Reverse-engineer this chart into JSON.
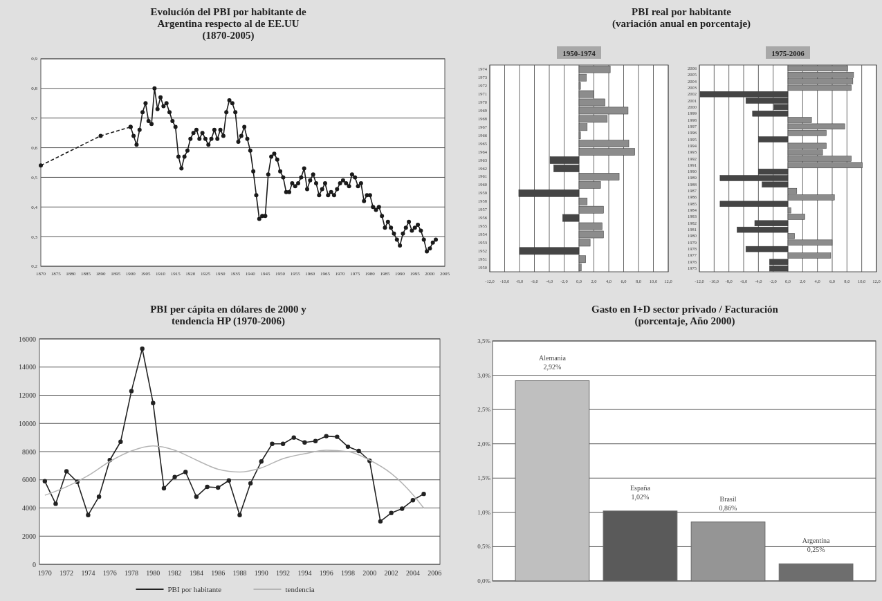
{
  "chart_data": [
    {
      "type": "line",
      "title": "Evolución del PBI por habitante de\nArgentina respecto al de EE.UU\n(1870-2005)",
      "marker": "circle",
      "grid": "y",
      "xlim": [
        1870,
        2005
      ],
      "xticks": [
        1870,
        1875,
        1880,
        1885,
        1890,
        1895,
        1900,
        1905,
        1910,
        1915,
        1920,
        1925,
        1930,
        1935,
        1940,
        1945,
        1950,
        1955,
        1960,
        1965,
        1970,
        1975,
        1980,
        1985,
        1990,
        1995,
        2000,
        2005
      ],
      "ylim": [
        0.2,
        0.9
      ],
      "yticks": [
        {
          "value": 0.2,
          "label": "0,2"
        },
        {
          "value": 0.3,
          "label": "0,3"
        },
        {
          "value": 0.4,
          "label": "0,4"
        },
        {
          "value": 0.5,
          "label": "0,5"
        },
        {
          "value": 0.6,
          "label": "0,6"
        },
        {
          "value": 0.7,
          "label": "0,7"
        },
        {
          "value": 0.8,
          "label": "0,8"
        },
        {
          "value": 0.9,
          "label": "0,9"
        }
      ],
      "series": [
        {
          "color": "#1a1a1a",
          "line_style": "dashed",
          "x": [
            1870,
            1890,
            1900
          ],
          "values": [
            0.54,
            0.64,
            0.67
          ]
        },
        {
          "color": "#1a1a1a",
          "line_style": "solid",
          "x": [
            1900,
            1901,
            1902,
            1903,
            1904,
            1905,
            1906,
            1907,
            1908,
            1909,
            1910,
            1911,
            1912,
            1913,
            1914,
            1915,
            1916,
            1917,
            1918,
            1919,
            1920,
            1921,
            1922,
            1923,
            1924,
            1925,
            1926,
            1927,
            1928,
            1929,
            1930,
            1931,
            1932,
            1933,
            1934,
            1935,
            1936,
            1937,
            1938,
            1939,
            1940,
            1941,
            1942,
            1943,
            1944,
            1945,
            1946,
            1947,
            1948,
            1949,
            1950,
            1951,
            1952,
            1953,
            1954,
            1955,
            1956,
            1957,
            1958,
            1959,
            1960,
            1961,
            1962,
            1963,
            1964,
            1965,
            1966,
            1967,
            1968,
            1969,
            1970,
            1971,
            1972,
            1973,
            1974,
            1975,
            1976,
            1977,
            1978,
            1979,
            1980,
            1981,
            1982,
            1983,
            1984,
            1985,
            1986,
            1987,
            1988,
            1989,
            1990,
            1991,
            1992,
            1993,
            1994,
            1995,
            1996,
            1997,
            1998,
            1999,
            2000,
            2001,
            2002
          ],
          "values": [
            0.67,
            0.64,
            0.61,
            0.66,
            0.72,
            0.75,
            0.69,
            0.68,
            0.8,
            0.73,
            0.77,
            0.74,
            0.75,
            0.72,
            0.69,
            0.67,
            0.57,
            0.53,
            0.57,
            0.59,
            0.63,
            0.65,
            0.66,
            0.63,
            0.65,
            0.63,
            0.61,
            0.63,
            0.66,
            0.63,
            0.66,
            0.64,
            0.72,
            0.76,
            0.75,
            0.72,
            0.62,
            0.64,
            0.67,
            0.63,
            0.59,
            0.52,
            0.44,
            0.36,
            0.37,
            0.37,
            0.51,
            0.57,
            0.58,
            0.56,
            0.52,
            0.5,
            0.45,
            0.45,
            0.48,
            0.47,
            0.48,
            0.5,
            0.53,
            0.46,
            0.49,
            0.51,
            0.48,
            0.44,
            0.46,
            0.48,
            0.44,
            0.45,
            0.44,
            0.46,
            0.48,
            0.49,
            0.48,
            0.47,
            0.51,
            0.5,
            0.47,
            0.48,
            0.42,
            0.44,
            0.44,
            0.4,
            0.39,
            0.4,
            0.37,
            0.33,
            0.35,
            0.33,
            0.31,
            0.29,
            0.27,
            0.31,
            0.33,
            0.35,
            0.32,
            0.33,
            0.34,
            0.32,
            0.29,
            0.25,
            0.26,
            0.28,
            0.29
          ]
        }
      ]
    },
    {
      "type": "bar",
      "orientation": "horizontal",
      "title": "PBI real por habitante\n(variación anual en porcentaje)",
      "subtitle": "1950-1974",
      "grid": "x",
      "categories": [
        "1974",
        "1973",
        "1972",
        "1971",
        "1970",
        "1969",
        "1968",
        "1967",
        "1966",
        "1965",
        "1964",
        "1963",
        "1962",
        "1961",
        "1960",
        "1959",
        "1958",
        "1957",
        "1956",
        "1955",
        "1954",
        "1953",
        "1952",
        "1951",
        "1950"
      ],
      "values": [
        4.2,
        1.0,
        0.2,
        2.0,
        3.5,
        6.6,
        3.8,
        1.1,
        0.2,
        6.7,
        7.5,
        -3.9,
        -3.4,
        5.4,
        2.9,
        -8.1,
        1.1,
        3.3,
        -2.2,
        3.1,
        3.3,
        1.5,
        -8.0,
        0.9,
        0.3
      ],
      "colors": [
        "#8c8c8c",
        "#8c8c8c",
        "#8c8c8c",
        "#8c8c8c",
        "#8c8c8c",
        "#8c8c8c",
        "#8c8c8c",
        "#8c8c8c",
        "#8c8c8c",
        "#8c8c8c",
        "#8c8c8c",
        "#454545",
        "#454545",
        "#8c8c8c",
        "#8c8c8c",
        "#454545",
        "#8c8c8c",
        "#8c8c8c",
        "#454545",
        "#8c8c8c",
        "#8c8c8c",
        "#8c8c8c",
        "#454545",
        "#8c8c8c",
        "#8c8c8c"
      ],
      "xlim": [
        -12,
        12
      ],
      "xticks": [
        {
          "value": -12,
          "label": "-12,0"
        },
        {
          "value": -10,
          "label": "-10,0"
        },
        {
          "value": -8,
          "label": "-8,0"
        },
        {
          "value": -6,
          "label": "-6,0"
        },
        {
          "value": -4,
          "label": "-4,0"
        },
        {
          "value": -2,
          "label": "-2,0"
        },
        {
          "value": 0,
          "label": "0,0"
        },
        {
          "value": 2,
          "label": "2,0"
        },
        {
          "value": 4,
          "label": "4,0"
        },
        {
          "value": 6,
          "label": "6,0"
        },
        {
          "value": 8,
          "label": "8,0"
        },
        {
          "value": 10,
          "label": "10,0"
        },
        {
          "value": 12,
          "label": "12,0"
        }
      ]
    },
    {
      "type": "bar",
      "orientation": "horizontal",
      "subtitle": "1975-2006",
      "grid": "x",
      "categories": [
        "2006",
        "2005",
        "2004",
        "2003",
        "2002",
        "2001",
        "2000",
        "1999",
        "1998",
        "1997",
        "1996",
        "1995",
        "1994",
        "1993",
        "1992",
        "1991",
        "1990",
        "1989",
        "1988",
        "1987",
        "1986",
        "1985",
        "1984",
        "1983",
        "1982",
        "1981",
        "1980",
        "1979",
        "1978",
        "1977",
        "1976",
        "1975"
      ],
      "values": [
        8.1,
        8.9,
        8.8,
        8.6,
        -11.9,
        -5.7,
        -1.9,
        -4.8,
        3.2,
        7.7,
        5.2,
        -4.0,
        5.2,
        4.7,
        8.6,
        10.1,
        -4.0,
        -9.2,
        -3.5,
        1.2,
        6.3,
        -9.2,
        0.4,
        2.3,
        -4.5,
        -6.9,
        0.9,
        6.0,
        -5.7,
        5.8,
        -2.5,
        -2.5
      ],
      "colors": [
        "#8c8c8c",
        "#8c8c8c",
        "#8c8c8c",
        "#8c8c8c",
        "#454545",
        "#454545",
        "#454545",
        "#454545",
        "#8c8c8c",
        "#8c8c8c",
        "#8c8c8c",
        "#454545",
        "#8c8c8c",
        "#8c8c8c",
        "#8c8c8c",
        "#8c8c8c",
        "#454545",
        "#454545",
        "#454545",
        "#8c8c8c",
        "#8c8c8c",
        "#454545",
        "#8c8c8c",
        "#8c8c8c",
        "#454545",
        "#454545",
        "#8c8c8c",
        "#8c8c8c",
        "#454545",
        "#8c8c8c",
        "#454545",
        "#454545"
      ],
      "xlim": [
        -12,
        12
      ],
      "xticks": [
        {
          "value": -12,
          "label": "-12,0"
        },
        {
          "value": -10,
          "label": "-10,0"
        },
        {
          "value": -8,
          "label": "-8,0"
        },
        {
          "value": -6,
          "label": "-6,0"
        },
        {
          "value": -4,
          "label": "-4,0"
        },
        {
          "value": -2,
          "label": "-2,0"
        },
        {
          "value": 0,
          "label": "0,0"
        },
        {
          "value": 2,
          "label": "2,0"
        },
        {
          "value": 4,
          "label": "4,0"
        },
        {
          "value": 6,
          "label": "6,0"
        },
        {
          "value": 8,
          "label": "8,0"
        },
        {
          "value": 10,
          "label": "10,0"
        },
        {
          "value": 12,
          "label": "12,0"
        }
      ]
    },
    {
      "type": "line",
      "title": "PBI per cápita en dólares de 2000 y\ntendencia HP (1970-2006)",
      "marker": "circle",
      "grid": "y",
      "legend": "bottom",
      "xlim": [
        1969.5,
        2006.5
      ],
      "xticks": [
        1970,
        1972,
        1974,
        1976,
        1978,
        1980,
        1982,
        1984,
        1986,
        1988,
        1990,
        1992,
        1994,
        1996,
        1998,
        2000,
        2002,
        2004,
        2006
      ],
      "ylim": [
        0,
        16000
      ],
      "yticks": [
        0,
        2000,
        4000,
        6000,
        8000,
        10000,
        12000,
        14000,
        16000
      ],
      "series": [
        {
          "name": "PBI por habitante",
          "color": "#222222",
          "x": [
            1970,
            1971,
            1972,
            1973,
            1974,
            1975,
            1976,
            1977,
            1978,
            1979,
            1980,
            1981,
            1982,
            1983,
            1984,
            1985,
            1986,
            1987,
            1988,
            1989,
            1990,
            1991,
            1992,
            1993,
            1994,
            1995,
            1996,
            1997,
            1998,
            1999,
            2000,
            2001,
            2002,
            2003,
            2004,
            2005
          ],
          "values": [
            5900,
            4300,
            6600,
            5850,
            3500,
            4800,
            7400,
            8700,
            12300,
            15300,
            11450,
            5400,
            6200,
            6550,
            4800,
            5500,
            5450,
            5950,
            3500,
            5750,
            7300,
            8550,
            8550,
            9000,
            8650,
            8750,
            9100,
            9050,
            8350,
            8050,
            7350,
            3050,
            3650,
            3950,
            4550,
            5000
          ]
        },
        {
          "name": "tendencia",
          "color": "#b5b5b5",
          "marker": "none",
          "x": [
            1970,
            1972,
            1974,
            1976,
            1978,
            1980,
            1982,
            1984,
            1986,
            1988,
            1990,
            1992,
            1994,
            1996,
            1998,
            2000,
            2002,
            2004,
            2005
          ],
          "values": [
            4900,
            5500,
            6300,
            7300,
            8050,
            8400,
            8100,
            7400,
            6750,
            6550,
            6850,
            7500,
            7850,
            8100,
            8000,
            7400,
            6450,
            4950,
            4000
          ]
        }
      ]
    },
    {
      "type": "bar",
      "title": "Gasto en I+D sector privado / Facturación\n(porcentaje, Año 2000)",
      "grid": "y",
      "tick_labels": "y",
      "categories": [
        "Alemania",
        "España",
        "Brasil",
        "Argentina"
      ],
      "values": [
        2.92,
        1.02,
        0.86,
        0.25
      ],
      "colors": [
        "#bfbfbf",
        "#5a5a5a",
        "#959595",
        "#6e6e6e"
      ],
      "value_labels": [
        "2,92%",
        "1,02%",
        "0,86%",
        "0,25%"
      ],
      "ylim": [
        0,
        3.5
      ],
      "yticks": [
        {
          "value": 0,
          "label": "0,0%"
        },
        {
          "value": 0.5,
          "label": "0,5%"
        },
        {
          "value": 1,
          "label": "1,0%"
        },
        {
          "value": 1.5,
          "label": "1,5%"
        },
        {
          "value": 2,
          "label": "2,0%"
        },
        {
          "value": 2.5,
          "label": "2,5%"
        },
        {
          "value": 3,
          "label": "3,0%"
        },
        {
          "value": 3.5,
          "label": "3,5%"
        }
      ]
    }
  ]
}
